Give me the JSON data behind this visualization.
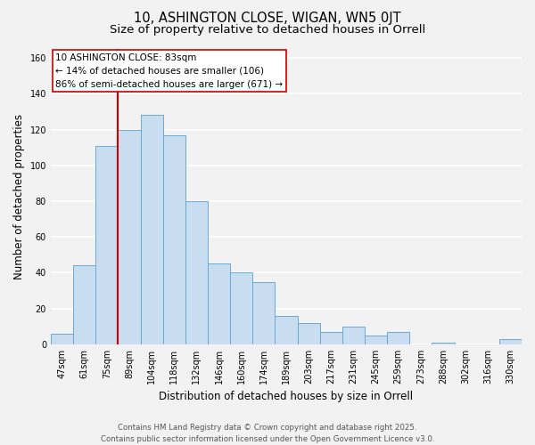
{
  "title": "10, ASHINGTON CLOSE, WIGAN, WN5 0JT",
  "subtitle": "Size of property relative to detached houses in Orrell",
  "xlabel": "Distribution of detached houses by size in Orrell",
  "ylabel": "Number of detached properties",
  "bar_labels": [
    "47sqm",
    "61sqm",
    "75sqm",
    "89sqm",
    "104sqm",
    "118sqm",
    "132sqm",
    "146sqm",
    "160sqm",
    "174sqm",
    "189sqm",
    "203sqm",
    "217sqm",
    "231sqm",
    "245sqm",
    "259sqm",
    "273sqm",
    "288sqm",
    "302sqm",
    "316sqm",
    "330sqm"
  ],
  "bar_values": [
    6,
    44,
    111,
    120,
    128,
    117,
    80,
    45,
    40,
    35,
    16,
    12,
    7,
    10,
    5,
    7,
    0,
    1,
    0,
    0,
    3
  ],
  "bar_color": "#c9ddf0",
  "bar_edge_color": "#6aaad4",
  "vline_color": "#cc0000",
  "vline_x_pos": 2.5,
  "ylim": [
    0,
    165
  ],
  "yticks": [
    0,
    20,
    40,
    60,
    80,
    100,
    120,
    140,
    160
  ],
  "annotation_title": "10 ASHINGTON CLOSE: 83sqm",
  "annotation_line1": "← 14% of detached houses are smaller (106)",
  "annotation_line2": "86% of semi-detached houses are larger (671) →",
  "footer_line1": "Contains HM Land Registry data © Crown copyright and database right 2025.",
  "footer_line2": "Contains public sector information licensed under the Open Government Licence v3.0.",
  "background_color": "#f2f2f2",
  "plot_bg_color": "#f2f2f2",
  "grid_color": "#ffffff",
  "title_fontsize": 10.5,
  "subtitle_fontsize": 9.5,
  "axis_label_fontsize": 8.5,
  "tick_fontsize": 7,
  "annot_fontsize": 7.5,
  "footer_fontsize": 6.2
}
